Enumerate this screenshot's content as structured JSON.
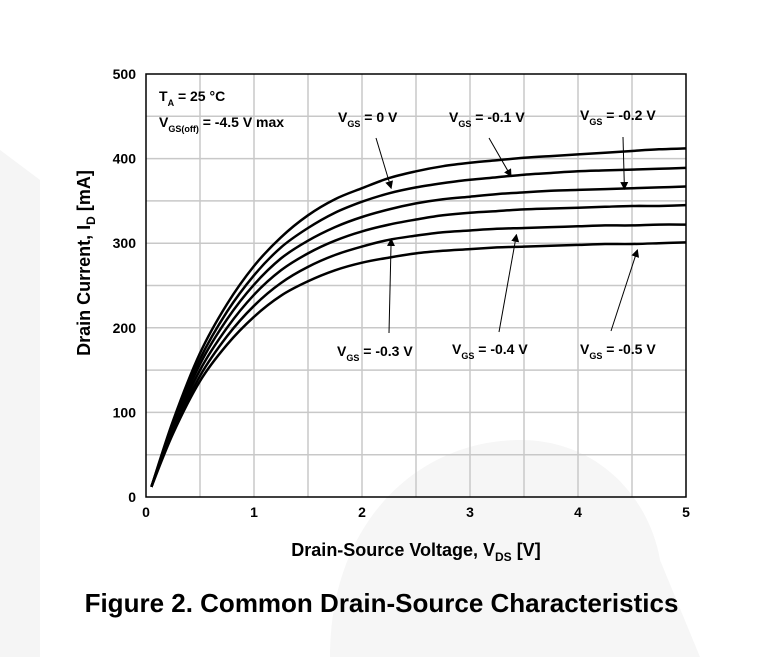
{
  "chart_data": {
    "type": "line",
    "title": "",
    "xlabel": {
      "main": "Drain-Source Voltage, V",
      "sub": "DS",
      "unit": " [V]"
    },
    "ylabel": {
      "main": "Drain Current, I",
      "sub": "D",
      "unit": " [mA]"
    },
    "xlim": [
      0,
      5
    ],
    "ylim": [
      0,
      500
    ],
    "x_ticks": [
      0,
      1,
      2,
      3,
      4,
      5
    ],
    "y_ticks": [
      0,
      100,
      200,
      300,
      400,
      500
    ],
    "x_tick_labels": [
      "0",
      "1",
      "2",
      "3",
      "4",
      "5"
    ],
    "y_tick_labels": [
      "0",
      "100",
      "200",
      "300",
      "400",
      "500"
    ],
    "grid": true,
    "conditions": [
      {
        "main": "T",
        "sub": "A",
        "rest": " = 25 °C"
      },
      {
        "main": "V",
        "sub": "GS(off)",
        "rest": " = -4.5 V max"
      }
    ],
    "x": [
      0.05,
      0.25,
      0.5,
      0.75,
      1.0,
      1.25,
      1.5,
      1.75,
      2.0,
      2.25,
      2.5,
      2.75,
      3.0,
      3.25,
      3.5,
      3.75,
      4.0,
      4.25,
      4.5,
      4.75,
      5.0
    ],
    "series": [
      {
        "name": "0 V",
        "values": [
          12,
          90,
          170,
          228,
          273,
          307,
          333,
          352,
          365,
          377,
          385,
          391,
          395,
          398,
          401,
          403,
          405,
          407,
          409,
          411,
          412
        ]
      },
      {
        "name": "-0.1 V",
        "values": [
          12,
          87,
          163,
          219,
          262,
          295,
          318,
          336,
          349,
          359,
          366,
          371,
          375,
          378,
          381,
          383,
          385,
          386,
          387,
          388,
          389
        ]
      },
      {
        "name": "-0.2 V",
        "values": [
          12,
          84,
          157,
          210,
          251,
          282,
          303,
          319,
          331,
          340,
          347,
          352,
          355,
          358,
          360,
          362,
          363,
          364,
          365,
          366,
          367
        ]
      },
      {
        "name": "-0.3 V",
        "values": [
          12,
          81,
          150,
          200,
          239,
          268,
          288,
          303,
          314,
          322,
          328,
          333,
          336,
          338,
          340,
          341,
          342,
          343,
          344,
          344,
          345
        ]
      },
      {
        "name": "-0.4 V",
        "values": [
          12,
          78,
          143,
          190,
          226,
          253,
          272,
          286,
          296,
          304,
          309,
          313,
          315,
          317,
          318,
          319,
          320,
          321,
          321,
          322,
          322
        ]
      },
      {
        "name": "-0.5 V",
        "values": [
          12,
          75,
          137,
          180,
          213,
          238,
          255,
          268,
          277,
          283,
          288,
          291,
          293,
          295,
          296,
          297,
          298,
          299,
          299,
          300,
          301
        ]
      }
    ],
    "annotations": [
      {
        "main": "V",
        "sub": "GS",
        "rest": " = 0 V"
      },
      {
        "main": "V",
        "sub": "GS",
        "rest": " = -0.1 V"
      },
      {
        "main": "V",
        "sub": "GS",
        "rest": " = -0.2 V"
      },
      {
        "main": "V",
        "sub": "GS",
        "rest": " = -0.3 V"
      },
      {
        "main": "V",
        "sub": "GS",
        "rest": " = -0.4 V"
      },
      {
        "main": "V",
        "sub": "GS",
        "rest": " = -0.5 V"
      }
    ]
  },
  "caption": "Figure 2. Common Drain-Source Characteristics",
  "colors": {
    "line": "#000000",
    "grid": "#c8c8c8",
    "frame": "#000000",
    "watermark": "#f4f4f4"
  }
}
